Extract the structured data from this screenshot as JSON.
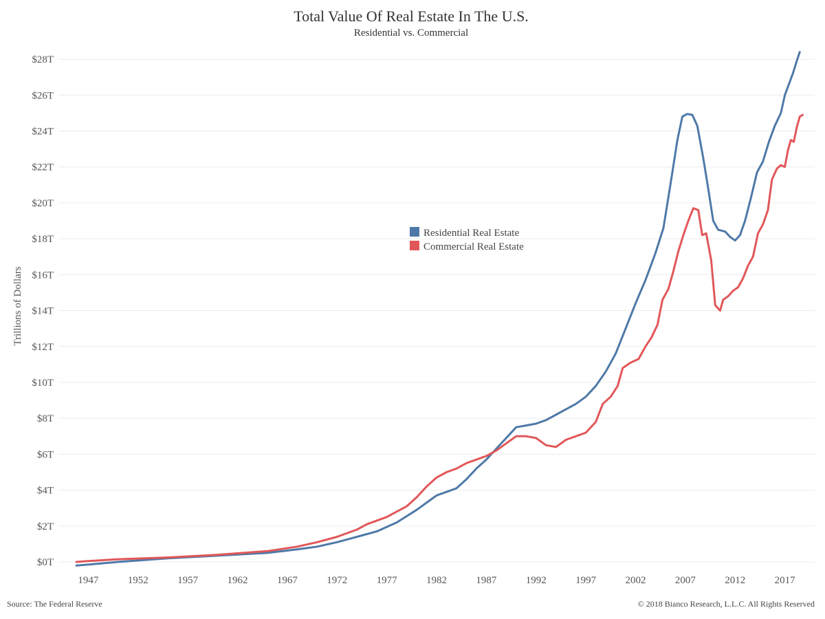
{
  "chart_data": {
    "type": "line",
    "title": "Total Value Of Real Estate In The U.S.",
    "subtitle": "Residential vs. Commercial",
    "ylabel": "Trillions of Dollars",
    "xlabel": "",
    "xlim": [
      1944,
      2020
    ],
    "ylim": [
      0,
      29
    ],
    "y_ticks": [
      0,
      2,
      4,
      6,
      8,
      10,
      12,
      14,
      16,
      18,
      20,
      22,
      24,
      26,
      28
    ],
    "y_tick_labels": [
      "$0T",
      "$2T",
      "$4T",
      "$6T",
      "$8T",
      "$10T",
      "$12T",
      "$14T",
      "$16T",
      "$18T",
      "$20T",
      "$22T",
      "$24T",
      "$26T",
      "$28T"
    ],
    "x_ticks": [
      1947,
      1952,
      1957,
      1962,
      1967,
      1972,
      1977,
      1982,
      1987,
      1992,
      1997,
      2002,
      2007,
      2012,
      2017
    ],
    "x_tick_labels": [
      "1947",
      "1952",
      "1957",
      "1962",
      "1967",
      "1972",
      "1977",
      "1982",
      "1987",
      "1992",
      "1997",
      "2002",
      "2007",
      "2012",
      "2017"
    ],
    "grid": "horizontal",
    "legend_position": "center",
    "source": "Source: The Federal Reserve",
    "copyright": "© 2018 Bianco Research, L.L.C. All Rights Reserved",
    "series": [
      {
        "name": "Residential Real Estate",
        "color": "#4e79a7",
        "points": [
          [
            1945.8,
            -0.2
          ],
          [
            1947,
            -0.15
          ],
          [
            1950,
            0.0
          ],
          [
            1955,
            0.2
          ],
          [
            1960,
            0.35
          ],
          [
            1965,
            0.5
          ],
          [
            1968,
            0.7
          ],
          [
            1970,
            0.85
          ],
          [
            1972,
            1.1
          ],
          [
            1974,
            1.4
          ],
          [
            1976,
            1.7
          ],
          [
            1978,
            2.2
          ],
          [
            1980,
            2.9
          ],
          [
            1981,
            3.3
          ],
          [
            1982,
            3.7
          ],
          [
            1983,
            3.9
          ],
          [
            1984,
            4.1
          ],
          [
            1985,
            4.6
          ],
          [
            1986,
            5.2
          ],
          [
            1987,
            5.7
          ],
          [
            1988,
            6.3
          ],
          [
            1989,
            6.9
          ],
          [
            1990,
            7.5
          ],
          [
            1991,
            7.6
          ],
          [
            1992,
            7.7
          ],
          [
            1993,
            7.9
          ],
          [
            1994,
            8.2
          ],
          [
            1995,
            8.5
          ],
          [
            1996,
            8.8
          ],
          [
            1997,
            9.2
          ],
          [
            1998,
            9.8
          ],
          [
            1999,
            10.6
          ],
          [
            2000,
            11.6
          ],
          [
            2001,
            13.0
          ],
          [
            2002,
            14.4
          ],
          [
            2003,
            15.7
          ],
          [
            2004,
            17.2
          ],
          [
            2004.8,
            18.6
          ],
          [
            2005.5,
            21.0
          ],
          [
            2006.2,
            23.5
          ],
          [
            2006.7,
            24.8
          ],
          [
            2007.2,
            24.95
          ],
          [
            2007.7,
            24.9
          ],
          [
            2008.2,
            24.3
          ],
          [
            2008.8,
            22.5
          ],
          [
            2009.3,
            20.8
          ],
          [
            2009.8,
            19.0
          ],
          [
            2010.3,
            18.5
          ],
          [
            2011,
            18.4
          ],
          [
            2011.5,
            18.1
          ],
          [
            2012,
            17.9
          ],
          [
            2012.5,
            18.2
          ],
          [
            2013,
            19.0
          ],
          [
            2013.6,
            20.3
          ],
          [
            2014.2,
            21.7
          ],
          [
            2014.8,
            22.3
          ],
          [
            2015.4,
            23.4
          ],
          [
            2016,
            24.3
          ],
          [
            2016.6,
            25.0
          ],
          [
            2017,
            26.0
          ],
          [
            2017.4,
            26.6
          ],
          [
            2017.8,
            27.2
          ],
          [
            2018.2,
            27.9
          ],
          [
            2018.5,
            28.4
          ]
        ]
      },
      {
        "name": "Commercial Real Estate",
        "color": "#e15759",
        "points": [
          [
            1945.8,
            0.0
          ],
          [
            1947,
            0.05
          ],
          [
            1950,
            0.15
          ],
          [
            1955,
            0.25
          ],
          [
            1960,
            0.4
          ],
          [
            1965,
            0.6
          ],
          [
            1968,
            0.85
          ],
          [
            1970,
            1.1
          ],
          [
            1972,
            1.4
          ],
          [
            1974,
            1.8
          ],
          [
            1975,
            2.1
          ],
          [
            1977,
            2.5
          ],
          [
            1979,
            3.1
          ],
          [
            1980,
            3.6
          ],
          [
            1981,
            4.2
          ],
          [
            1982,
            4.7
          ],
          [
            1983,
            5.0
          ],
          [
            1984,
            5.2
          ],
          [
            1985,
            5.5
          ],
          [
            1986,
            5.7
          ],
          [
            1987,
            5.9
          ],
          [
            1988,
            6.2
          ],
          [
            1989,
            6.6
          ],
          [
            1990,
            7.0
          ],
          [
            1991,
            7.0
          ],
          [
            1992,
            6.9
          ],
          [
            1993,
            6.5
          ],
          [
            1994,
            6.4
          ],
          [
            1995,
            6.8
          ],
          [
            1996,
            7.0
          ],
          [
            1997,
            7.2
          ],
          [
            1998,
            7.8
          ],
          [
            1998.7,
            8.8
          ],
          [
            1999.5,
            9.2
          ],
          [
            2000.2,
            9.8
          ],
          [
            2000.7,
            10.8
          ],
          [
            2001.5,
            11.1
          ],
          [
            2002.3,
            11.3
          ],
          [
            2003,
            12.0
          ],
          [
            2003.6,
            12.5
          ],
          [
            2004.2,
            13.2
          ],
          [
            2004.7,
            14.6
          ],
          [
            2005.3,
            15.2
          ],
          [
            2005.8,
            16.2
          ],
          [
            2006.3,
            17.3
          ],
          [
            2006.8,
            18.2
          ],
          [
            2007.3,
            19.0
          ],
          [
            2007.8,
            19.7
          ],
          [
            2008.3,
            19.6
          ],
          [
            2008.7,
            18.2
          ],
          [
            2009.1,
            18.3
          ],
          [
            2009.6,
            16.8
          ],
          [
            2010,
            14.3
          ],
          [
            2010.5,
            14.0
          ],
          [
            2010.8,
            14.6
          ],
          [
            2011.3,
            14.8
          ],
          [
            2011.8,
            15.1
          ],
          [
            2012.3,
            15.3
          ],
          [
            2012.8,
            15.8
          ],
          [
            2013.3,
            16.5
          ],
          [
            2013.8,
            17.0
          ],
          [
            2014.3,
            18.3
          ],
          [
            2014.8,
            18.8
          ],
          [
            2015.3,
            19.6
          ],
          [
            2015.7,
            21.3
          ],
          [
            2016.2,
            21.9
          ],
          [
            2016.6,
            22.1
          ],
          [
            2017,
            22.0
          ],
          [
            2017.3,
            22.9
          ],
          [
            2017.6,
            23.5
          ],
          [
            2017.9,
            23.4
          ],
          [
            2018.2,
            24.2
          ],
          [
            2018.5,
            24.8
          ],
          [
            2018.8,
            24.9
          ]
        ]
      }
    ]
  }
}
